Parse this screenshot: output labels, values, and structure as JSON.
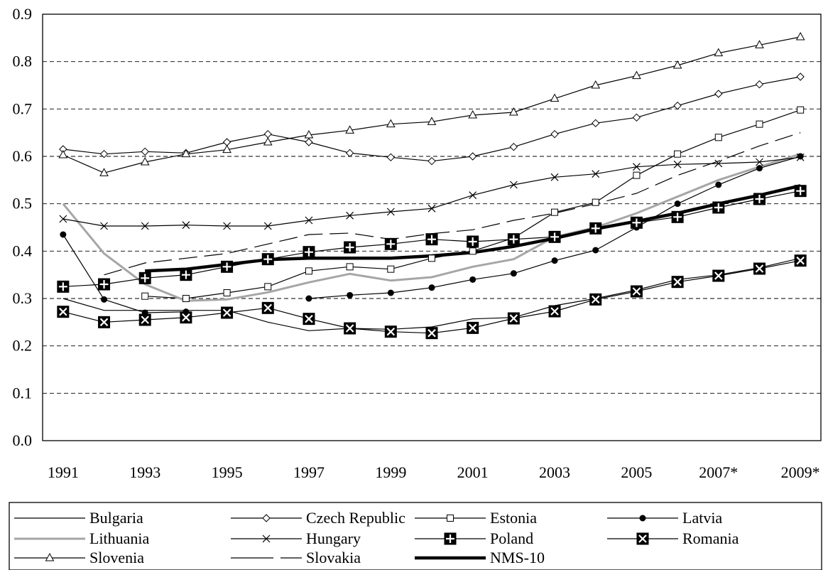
{
  "chart_data": {
    "type": "line",
    "title": "",
    "xlabel": "",
    "ylabel": "",
    "x": [
      "1991",
      "1992",
      "1993",
      "1994",
      "1995",
      "1996",
      "1997",
      "1998",
      "1999",
      "2000",
      "2001",
      "2002",
      "2003",
      "2004",
      "2005",
      "2006",
      "2007*",
      "2008",
      "2009*"
    ],
    "x_tick_labels": [
      "1991",
      "1993",
      "1995",
      "1997",
      "1999",
      "2001",
      "2003",
      "2005",
      "2007*",
      "2009*"
    ],
    "ylim": [
      0,
      0.9
    ],
    "y_ticks": [
      "0.0",
      "0.1",
      "0.2",
      "0.3",
      "0.4",
      "0.5",
      "0.6",
      "0.7",
      "0.8",
      "0.9"
    ],
    "grid": "horizontal dashed",
    "legend_position": "bottom",
    "series": [
      {
        "name": "Bulgaria",
        "color": "#000000",
        "style": "thin",
        "marker": "none",
        "values": [
          0.3,
          0.275,
          0.275,
          0.275,
          0.275,
          0.25,
          0.232,
          0.237,
          0.235,
          0.24,
          0.257,
          0.26,
          0.285,
          0.3,
          0.318,
          0.34,
          0.35,
          0.365,
          0.385
        ]
      },
      {
        "name": "Czech Republic",
        "color": "#000000",
        "style": "thin",
        "marker": "diamond",
        "values": [
          0.615,
          0.605,
          0.61,
          0.607,
          0.63,
          0.647,
          0.63,
          0.607,
          0.598,
          0.59,
          0.6,
          0.62,
          0.647,
          0.67,
          0.682,
          0.707,
          0.732,
          0.752,
          0.768
        ]
      },
      {
        "name": "Estonia",
        "color": "#000000",
        "style": "thin",
        "marker": "square",
        "values": [
          null,
          null,
          0.305,
          0.3,
          0.312,
          0.325,
          0.358,
          0.367,
          0.362,
          0.385,
          0.4,
          0.428,
          0.482,
          0.503,
          0.56,
          0.605,
          0.64,
          0.668,
          0.698
        ]
      },
      {
        "name": "Latvia",
        "color": "#000000",
        "style": "thin",
        "marker": "dot",
        "values": [
          0.435,
          0.298,
          0.27,
          0.272,
          null,
          null,
          0.3,
          0.307,
          0.312,
          0.323,
          0.34,
          0.353,
          0.38,
          0.402,
          0.45,
          0.5,
          0.54,
          0.575,
          0.6
        ]
      },
      {
        "name": "Lithuania",
        "color": "#a6a6a6",
        "style": "thick",
        "marker": "none",
        "values": [
          0.5,
          0.395,
          0.33,
          0.295,
          0.298,
          0.313,
          0.334,
          0.352,
          0.338,
          0.345,
          0.367,
          0.383,
          0.43,
          0.45,
          0.48,
          0.515,
          0.55,
          0.578,
          0.605
        ]
      },
      {
        "name": "Hungary",
        "color": "#000000",
        "style": "thin",
        "marker": "cross",
        "values": [
          0.468,
          0.453,
          0.453,
          0.455,
          0.453,
          0.453,
          0.465,
          0.475,
          0.483,
          0.49,
          0.518,
          0.54,
          0.556,
          0.563,
          0.578,
          0.583,
          0.585,
          0.588,
          0.598
        ]
      },
      {
        "name": "Poland",
        "color": "#000000",
        "style": "thin",
        "marker": "plus-square",
        "values": [
          0.325,
          0.33,
          0.343,
          0.35,
          0.367,
          0.383,
          0.398,
          0.408,
          0.415,
          0.425,
          0.42,
          0.425,
          0.43,
          0.448,
          0.46,
          0.472,
          0.492,
          0.51,
          0.527
        ]
      },
      {
        "name": "Romania",
        "color": "#000000",
        "style": "thin",
        "marker": "x-square",
        "values": [
          0.272,
          0.25,
          0.255,
          0.26,
          0.27,
          0.28,
          0.257,
          0.237,
          0.23,
          0.227,
          0.238,
          0.258,
          0.273,
          0.298,
          0.315,
          0.335,
          0.348,
          0.363,
          0.38
        ]
      },
      {
        "name": "Slovenia",
        "color": "#000000",
        "style": "thin",
        "marker": "triangle",
        "values": [
          0.603,
          0.565,
          0.588,
          0.605,
          0.614,
          0.63,
          0.645,
          0.655,
          0.668,
          0.673,
          0.687,
          0.693,
          0.722,
          0.75,
          0.77,
          0.792,
          0.818,
          0.835,
          0.852
        ]
      },
      {
        "name": "Slovakia",
        "color": "#000000",
        "style": "dash",
        "marker": "none",
        "values": [
          null,
          0.35,
          0.375,
          0.385,
          0.395,
          0.415,
          0.435,
          0.438,
          0.425,
          0.437,
          0.445,
          0.465,
          0.48,
          0.5,
          0.522,
          0.56,
          0.59,
          0.622,
          0.65
        ]
      },
      {
        "name": "NMS-10",
        "color": "#000000",
        "style": "extra-thick",
        "marker": "none",
        "values": [
          null,
          null,
          0.358,
          0.362,
          0.372,
          0.382,
          0.385,
          0.385,
          0.385,
          0.39,
          0.397,
          0.41,
          0.427,
          0.447,
          0.463,
          0.48,
          0.5,
          0.518,
          0.538
        ]
      }
    ]
  }
}
